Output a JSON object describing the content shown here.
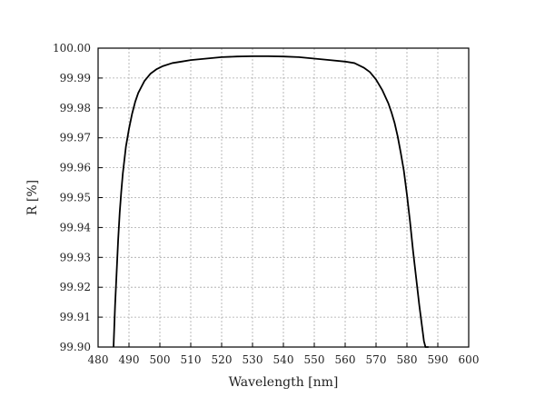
{
  "chart_data": {
    "type": "line",
    "title": "",
    "xlabel": "Wavelength [nm]",
    "ylabel": "R [%]",
    "xlim": [
      480,
      600
    ],
    "ylim": [
      99.9,
      100.0
    ],
    "grid": true,
    "x_ticks": [
      480,
      490,
      500,
      510,
      520,
      530,
      540,
      550,
      560,
      570,
      580,
      590,
      600
    ],
    "y_ticks": [
      99.9,
      99.91,
      99.92,
      99.93,
      99.94,
      99.95,
      99.96,
      99.97,
      99.98,
      99.99,
      100.0
    ],
    "x_tick_labels": [
      "480",
      "490",
      "500",
      "510",
      "520",
      "530",
      "540",
      "550",
      "560",
      "570",
      "580",
      "590",
      "600"
    ],
    "y_tick_labels": [
      "99.90",
      "99.91",
      "99.92",
      "99.93",
      "99.94",
      "99.95",
      "99.96",
      "99.97",
      "99.98",
      "99.99",
      "100.00"
    ],
    "series": [
      {
        "color": "#000000",
        "x": [
          485.0,
          485.5,
          486.0,
          486.5,
          487.0,
          487.5,
          488.0,
          489.0,
          490.0,
          491.0,
          492.0,
          493.0,
          494.0,
          495.0,
          497.0,
          499.0,
          501.0,
          504.0,
          507.0,
          510.0,
          515.0,
          520.0,
          525.0,
          530.0,
          535.0,
          540.0,
          545.0,
          550.0,
          555.0,
          560.0,
          563.0,
          566.0,
          568.0,
          570.0,
          572.0,
          574.0,
          575.0,
          576.0,
          577.0,
          578.0,
          579.0,
          580.0,
          581.0,
          582.0,
          583.0,
          584.0,
          585.0,
          585.5,
          586.0,
          586.5,
          587.0
        ],
        "y": [
          99.9,
          99.914,
          99.925,
          99.936,
          99.945,
          99.952,
          99.958,
          99.967,
          99.973,
          99.978,
          99.982,
          99.985,
          99.987,
          99.989,
          99.9915,
          99.993,
          99.994,
          99.995,
          99.9955,
          99.996,
          99.9965,
          99.997,
          99.9972,
          99.9973,
          99.9973,
          99.9972,
          99.997,
          99.9965,
          99.996,
          99.9955,
          99.995,
          99.9935,
          99.992,
          99.9895,
          99.986,
          99.9815,
          99.9785,
          99.975,
          99.9705,
          99.965,
          99.959,
          99.951,
          99.942,
          99.932,
          99.923,
          99.914,
          99.906,
          99.902,
          99.9,
          99.9,
          99.9
        ]
      }
    ]
  }
}
